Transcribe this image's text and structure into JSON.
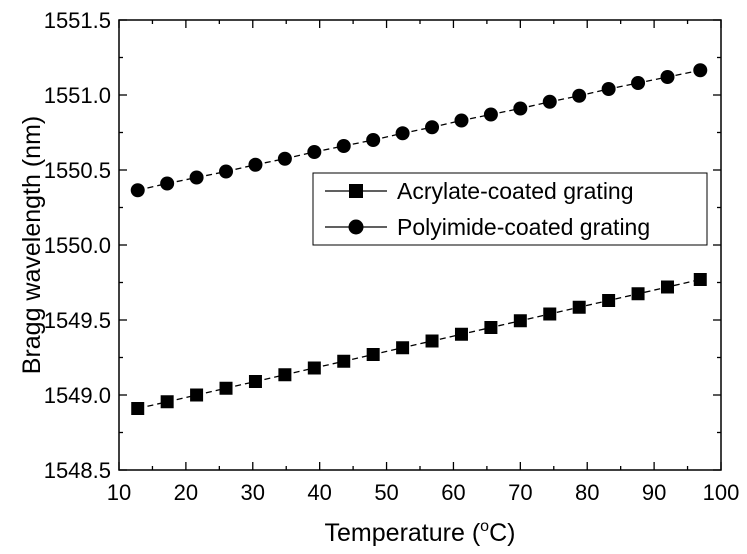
{
  "chart_data": {
    "type": "line",
    "title": "",
    "xlabel": "Temperature (",
    "xlabel_sup": "o",
    "xlabel_end": "C)",
    "ylabel": "Bragg wavelength (nm)",
    "xlim": [
      10,
      100
    ],
    "ylim": [
      1548.5,
      1551.5
    ],
    "xticks": [
      10,
      20,
      30,
      40,
      50,
      60,
      70,
      80,
      90,
      100
    ],
    "yticks": [
      "1548.5",
      "1549.0",
      "1549.5",
      "1550.0",
      "1550.5",
      "1551.0",
      "1551.5"
    ],
    "grid": false,
    "legend_position": "middle-right",
    "x": [
      12.8,
      17.2,
      21.6,
      26.0,
      30.4,
      34.8,
      39.2,
      43.6,
      48.0,
      52.4,
      56.8,
      61.2,
      65.6,
      70.0,
      74.4,
      78.8,
      83.2,
      87.6,
      92.0,
      96.9
    ],
    "series": [
      {
        "name": "Acrylate-coated grating",
        "marker": "square",
        "values": [
          1548.91,
          1548.955,
          1549.0,
          1549.045,
          1549.09,
          1549.135,
          1549.18,
          1549.225,
          1549.27,
          1549.315,
          1549.36,
          1549.405,
          1549.45,
          1549.495,
          1549.54,
          1549.585,
          1549.63,
          1549.675,
          1549.72,
          1549.77
        ]
      },
      {
        "name": "Polyimide-coated grating",
        "marker": "circle",
        "values": [
          1550.365,
          1550.41,
          1550.45,
          1550.49,
          1550.535,
          1550.575,
          1550.62,
          1550.66,
          1550.7,
          1550.745,
          1550.785,
          1550.83,
          1550.87,
          1550.91,
          1550.955,
          1550.995,
          1551.04,
          1551.08,
          1551.12,
          1551.165
        ]
      }
    ]
  }
}
